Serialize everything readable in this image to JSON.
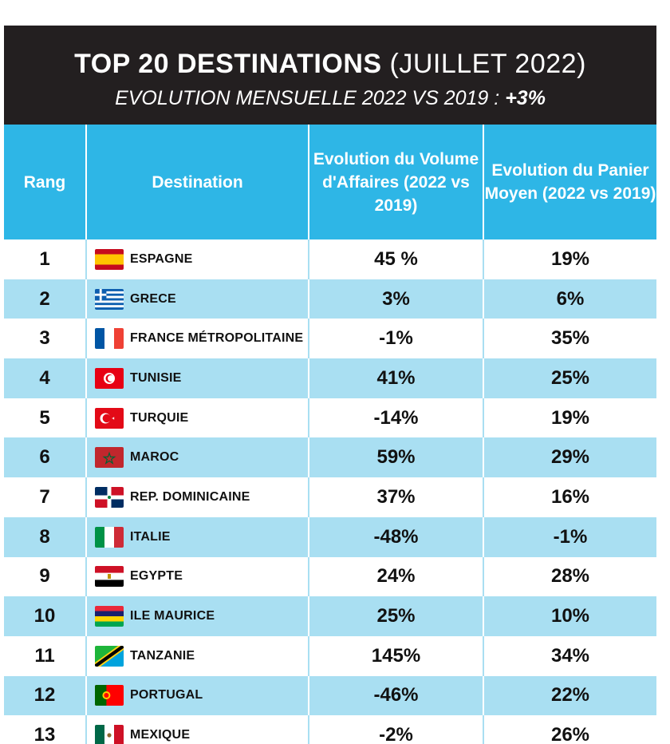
{
  "title": {
    "main": "TOP 20 DESTINATIONS",
    "rest": "(JUILLET 2022)",
    "subtitle_text": "EVOLUTION MENSUELLE 2022 VS 2019 :",
    "subtitle_value": "+3%"
  },
  "header": {
    "rang": "Rang",
    "destination": "Destination",
    "volume": "Evolution du Volume d'Affaires (2022 vs 2019)",
    "panier": "Evolution du Panier Moyen (2022 vs 2019)"
  },
  "colors": {
    "header_bg": "#2eb6e6",
    "title_bg": "#231f20",
    "stripe": "#a9dff2"
  },
  "rows": [
    {
      "rank": "1",
      "destination": "ESPAGNE",
      "flag": "spain-flag-icon",
      "volume": "45 %",
      "panier": "19%"
    },
    {
      "rank": "2",
      "destination": "GRECE",
      "flag": "greece-flag-icon",
      "volume": "3%",
      "panier": "6%"
    },
    {
      "rank": "3",
      "destination": "FRANCE MÉTROPOLITAINE",
      "flag": "france-flag-icon",
      "volume": "-1%",
      "panier": "35%"
    },
    {
      "rank": "4",
      "destination": "TUNISIE",
      "flag": "tunisia-flag-icon",
      "volume": "41%",
      "panier": "25%"
    },
    {
      "rank": "5",
      "destination": "TURQUIE",
      "flag": "turkey-flag-icon",
      "volume": "-14%",
      "panier": "19%"
    },
    {
      "rank": "6",
      "destination": "MAROC",
      "flag": "morocco-flag-icon",
      "volume": "59%",
      "panier": "29%"
    },
    {
      "rank": "7",
      "destination": "REP. DOMINICAINE",
      "flag": "dominican-republic-flag-icon",
      "volume": "37%",
      "panier": "16%"
    },
    {
      "rank": "8",
      "destination": "ITALIE",
      "flag": "italy-flag-icon",
      "volume": "-48%",
      "panier": "-1%"
    },
    {
      "rank": "9",
      "destination": "EGYPTE",
      "flag": "egypt-flag-icon",
      "volume": "24%",
      "panier": "28%"
    },
    {
      "rank": "10",
      "destination": "ILE MAURICE",
      "flag": "mauritius-flag-icon",
      "volume": "25%",
      "panier": "10%"
    },
    {
      "rank": "11",
      "destination": "TANZANIE",
      "flag": "tanzania-flag-icon",
      "volume": "145%",
      "panier": "34%"
    },
    {
      "rank": "12",
      "destination": "PORTUGAL",
      "flag": "portugal-flag-icon",
      "volume": "-46%",
      "panier": "22%"
    },
    {
      "rank": "13",
      "destination": "MEXIQUE",
      "flag": "mexico-flag-icon",
      "volume": "-2%",
      "panier": "26%"
    }
  ]
}
